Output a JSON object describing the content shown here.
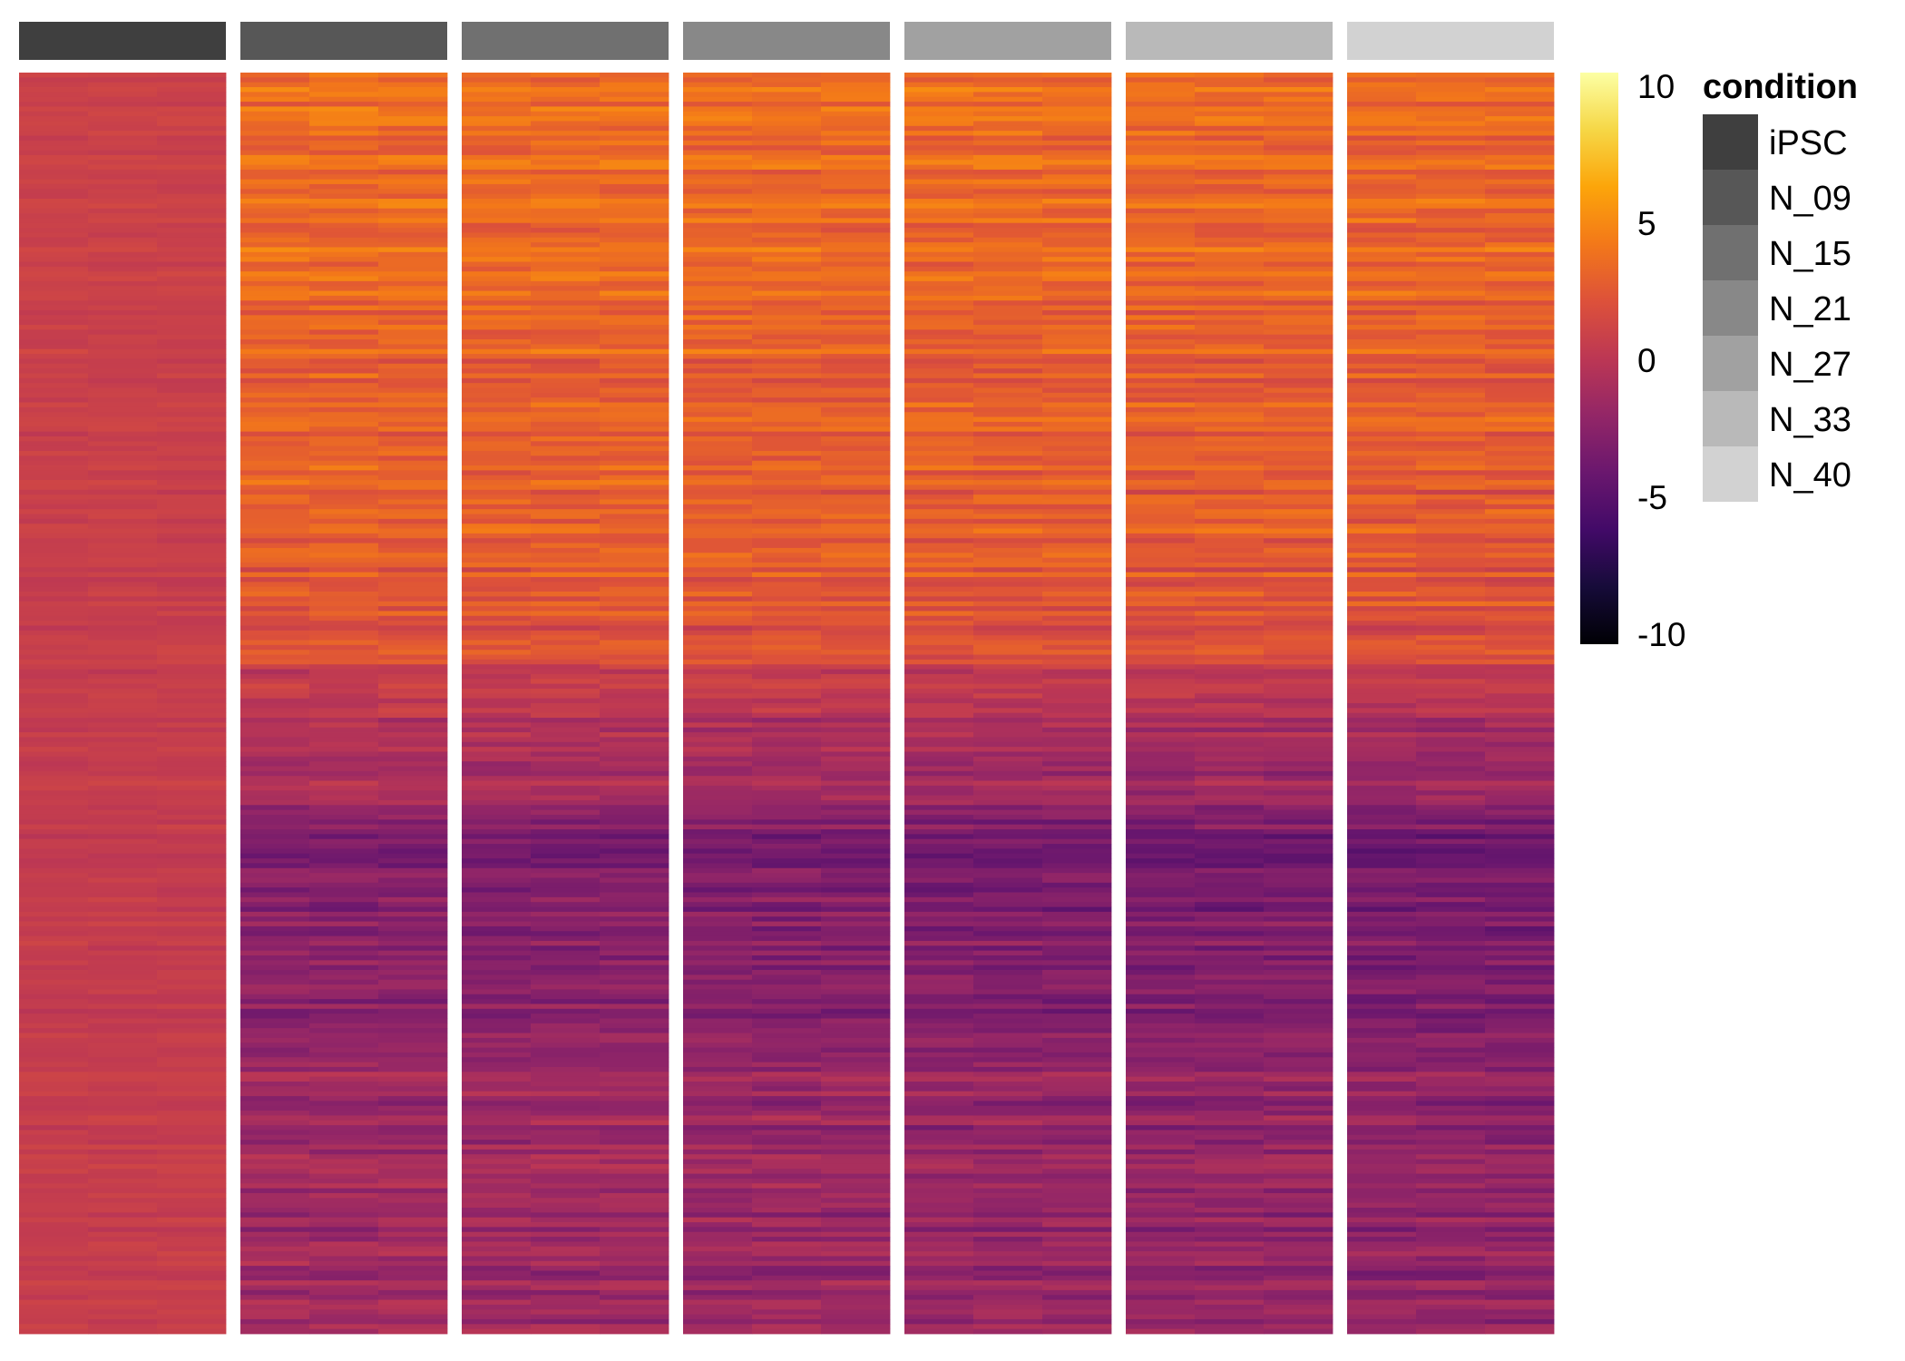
{
  "chart_data": {
    "type": "heatmap",
    "title": "",
    "xlabel": "",
    "ylabel": "",
    "column_groups": [
      {
        "name": "iPSC",
        "replicates": 3,
        "color": "#3f3f3f"
      },
      {
        "name": "N_09",
        "replicates": 3,
        "color": "#575757"
      },
      {
        "name": "N_15",
        "replicates": 3,
        "color": "#707070"
      },
      {
        "name": "N_21",
        "replicates": 3,
        "color": "#888888"
      },
      {
        "name": "N_27",
        "replicates": 3,
        "color": "#a1a1a1"
      },
      {
        "name": "N_33",
        "replicates": 3,
        "color": "#b9b9b9"
      },
      {
        "name": "N_40",
        "replicates": 3,
        "color": "#d2d2d2"
      }
    ],
    "row_count": 260,
    "row_profile_note_free": true,
    "row_bands": [
      {
        "from": 0.0,
        "to": 0.4,
        "ipsc": 0.8,
        "others": 3.2
      },
      {
        "from": 0.4,
        "to": 0.5,
        "ipsc": 0.6,
        "others": 2.3
      },
      {
        "from": 0.5,
        "to": 0.6,
        "ipsc": 0.5,
        "others": -0.5
      },
      {
        "from": 0.6,
        "to": 0.8,
        "ipsc": 0.4,
        "others": -3.0
      },
      {
        "from": 0.8,
        "to": 1.0,
        "ipsc": 0.5,
        "others": -1.8
      }
    ],
    "color_scale": {
      "name": "inferno",
      "min": -10,
      "max": 10,
      "ticks": [
        10,
        5,
        0,
        -5,
        -10
      ],
      "stops": [
        "#000004",
        "#160b39",
        "#420a68",
        "#6a176e",
        "#932667",
        "#bc3754",
        "#dd513a",
        "#f37819",
        "#fca50a",
        "#f6d746",
        "#fcffa4"
      ]
    },
    "legend": {
      "title": "condition",
      "placement": "right",
      "entries": [
        "iPSC",
        "N_09",
        "N_15",
        "N_21",
        "N_27",
        "N_33",
        "N_40"
      ]
    }
  }
}
